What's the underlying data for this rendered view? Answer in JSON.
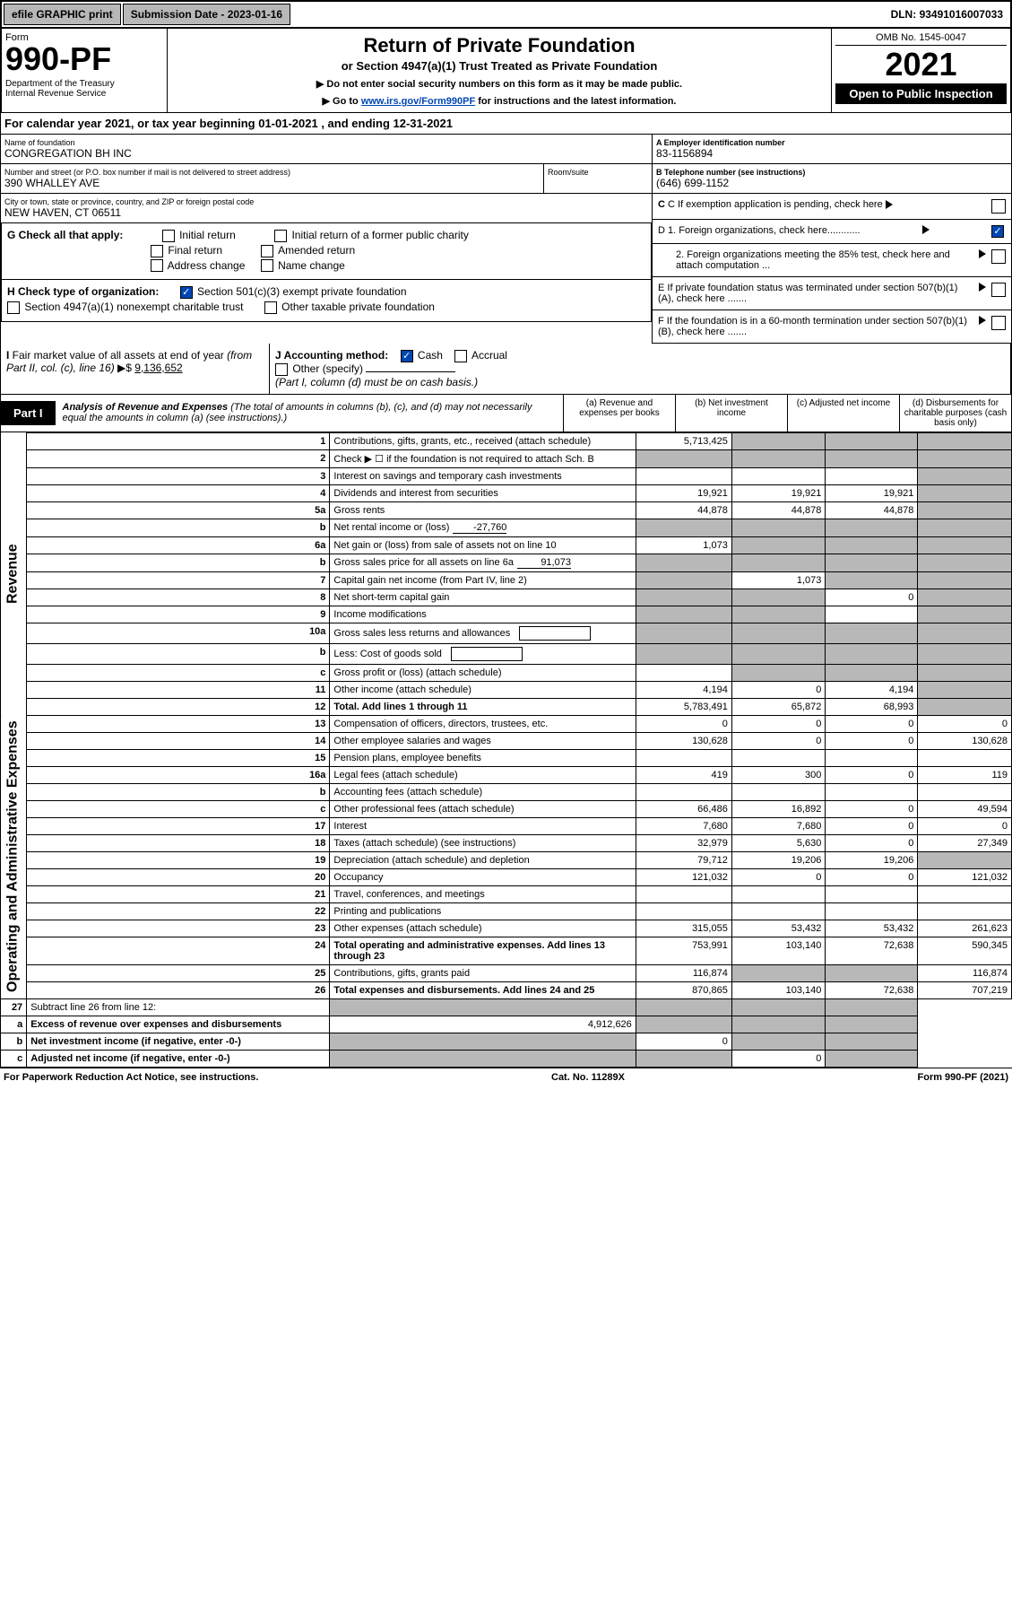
{
  "topbar": {
    "efile": "efile GRAPHIC print",
    "subdate_lbl": "Submission Date - ",
    "subdate": "2023-01-16",
    "dln_lbl": "DLN: ",
    "dln": "93491016007033"
  },
  "header": {
    "form": "Form",
    "num": "990-PF",
    "dept": "Department of the Treasury\nInternal Revenue Service",
    "title": "Return of Private Foundation",
    "sub": "or Section 4947(a)(1) Trust Treated as Private Foundation",
    "note1": "▶ Do not enter social security numbers on this form as it may be made public.",
    "note2": "▶ Go to ",
    "link": "www.irs.gov/Form990PF",
    "note3": " for instructions and the latest information.",
    "omb": "OMB No. 1545-0047",
    "year": "2021",
    "open": "Open to Public Inspection"
  },
  "calyear": "For calendar year 2021, or tax year beginning 01-01-2021            , and ending 12-31-2021",
  "name": {
    "lbl": "Name of foundation",
    "val": "CONGREGATION BH INC"
  },
  "addr": {
    "lbl": "Number and street (or P.O. box number if mail is not delivered to street address)",
    "val": "390 WHALLEY AVE",
    "room": "Room/suite"
  },
  "city": {
    "lbl": "City or town, state or province, country, and ZIP or foreign postal code",
    "val": "NEW HAVEN, CT  06511"
  },
  "ein": {
    "lbl": "A Employer identification number",
    "val": "83-1156894"
  },
  "tel": {
    "lbl": "B Telephone number (see instructions)",
    "val": "(646) 699-1152"
  },
  "c": {
    "txt": "C If exemption application is pending, check here"
  },
  "d": {
    "d1": "D 1. Foreign organizations, check here............",
    "d2": "2. Foreign organizations meeting the 85% test, check here and attach computation ...",
    "d1_checked": true
  },
  "e": {
    "txt": "E  If private foundation status was terminated under section 507(b)(1)(A), check here ......."
  },
  "f": {
    "txt": "F  If the foundation is in a 60-month termination under section 507(b)(1)(B), check here ......."
  },
  "g": {
    "lbl": "G Check all that apply:",
    "opts": [
      "Initial return",
      "Initial return of a former public charity",
      "Final return",
      "Amended return",
      "Address change",
      "Name change"
    ]
  },
  "h": {
    "lbl": "H Check type of organization:",
    "o1": "Section 501(c)(3) exempt private foundation",
    "o2": "Section 4947(a)(1) nonexempt charitable trust",
    "o3": "Other taxable private foundation",
    "o1_checked": true
  },
  "i": {
    "lbl": "I Fair market value of all assets at end of year (from Part II, col. (c), line 16) ▶$",
    "val": "9,136,652"
  },
  "j": {
    "lbl": "J Accounting method:",
    "cash": "Cash",
    "accrual": "Accrual",
    "other": "Other (specify)",
    "note": "(Part I, column (d) must be on cash basis.)",
    "cash_checked": true
  },
  "part1": {
    "tag": "Part I",
    "desc_b": "Analysis of Revenue and Expenses",
    "desc_i": " (The total of amounts in columns (b), (c), and (d) may not necessarily equal the amounts in column (a) (see instructions).)",
    "ca": "(a)  Revenue and expenses per books",
    "cb": "(b)  Net investment income",
    "cc": "(c)  Adjusted net income",
    "cd": "(d)  Disbursements for charitable purposes (cash basis only)"
  },
  "revlabel": "Revenue",
  "oplabel": "Operating and Administrative Expenses",
  "rows": [
    {
      "n": "1",
      "d": "Contributions, gifts, grants, etc., received (attach schedule)",
      "a": "5,713,425",
      "grey_bcd": true
    },
    {
      "n": "2",
      "d": "Check ▶ ☐ if the foundation is not required to attach Sch. B",
      "dots": true,
      "grey_all": true
    },
    {
      "n": "3",
      "d": "Interest on savings and temporary cash investments",
      "a": "",
      "b": "",
      "c": ""
    },
    {
      "n": "4",
      "d": "Dividends and interest from securities",
      "dots": true,
      "a": "19,921",
      "b": "19,921",
      "c": "19,921"
    },
    {
      "n": "5a",
      "d": "Gross rents",
      "dots": true,
      "a": "44,878",
      "b": "44,878",
      "c": "44,878"
    },
    {
      "n": "b",
      "d": "Net rental income or (loss)",
      "fill": "-27,760",
      "grey_all": true
    },
    {
      "n": "6a",
      "d": "Net gain or (loss) from sale of assets not on line 10",
      "a": "1,073",
      "grey_bcd": true
    },
    {
      "n": "b",
      "d": "Gross sales price for all assets on line 6a",
      "fill": "91,073",
      "grey_all": true
    },
    {
      "n": "7",
      "d": "Capital gain net income (from Part IV, line 2)",
      "dots": true,
      "b": "1,073",
      "grey_acd": true,
      "grey_a": true
    },
    {
      "n": "8",
      "d": "Net short-term capital gain",
      "dots": true,
      "c": "0",
      "grey_abd": true
    },
    {
      "n": "9",
      "d": "Income modifications",
      "dots": true,
      "grey_abd": true
    },
    {
      "n": "10a",
      "d": "Gross sales less returns and allowances",
      "box": true,
      "grey_all": true
    },
    {
      "n": "b",
      "d": "Less: Cost of goods sold",
      "dots": true,
      "box": true,
      "grey_all": true
    },
    {
      "n": "c",
      "d": "Gross profit or (loss) (attach schedule)",
      "dots": true,
      "a": "",
      "grey_bcd": true,
      "c": ""
    },
    {
      "n": "11",
      "d": "Other income (attach schedule)",
      "dots": true,
      "a": "4,194",
      "b": "0",
      "c": "4,194"
    },
    {
      "n": "12",
      "d": "Total. Add lines 1 through 11",
      "dots": true,
      "b_bold": true,
      "a": "5,783,491",
      "b": "65,872",
      "c": "68,993",
      "grey_d": true
    }
  ],
  "oprows": [
    {
      "n": "13",
      "d": "Compensation of officers, directors, trustees, etc.",
      "a": "0",
      "b": "0",
      "c": "0",
      "dd": "0"
    },
    {
      "n": "14",
      "d": "Other employee salaries and wages",
      "dots": true,
      "a": "130,628",
      "b": "0",
      "c": "0",
      "dd": "130,628"
    },
    {
      "n": "15",
      "d": "Pension plans, employee benefits",
      "dots": true
    },
    {
      "n": "16a",
      "d": "Legal fees (attach schedule)",
      "dots": true,
      "a": "419",
      "b": "300",
      "c": "0",
      "dd": "119"
    },
    {
      "n": "b",
      "d": "Accounting fees (attach schedule)",
      "dots": true
    },
    {
      "n": "c",
      "d": "Other professional fees (attach schedule)",
      "dots": true,
      "a": "66,486",
      "b": "16,892",
      "c": "0",
      "dd": "49,594"
    },
    {
      "n": "17",
      "d": "Interest",
      "dots": true,
      "a": "7,680",
      "b": "7,680",
      "c": "0",
      "dd": "0"
    },
    {
      "n": "18",
      "d": "Taxes (attach schedule) (see instructions)",
      "dots": true,
      "a": "32,979",
      "b": "5,630",
      "c": "0",
      "dd": "27,349"
    },
    {
      "n": "19",
      "d": "Depreciation (attach schedule) and depletion",
      "dots": true,
      "a": "79,712",
      "b": "19,206",
      "c": "19,206",
      "grey_d": true
    },
    {
      "n": "20",
      "d": "Occupancy",
      "dots": true,
      "a": "121,032",
      "b": "0",
      "c": "0",
      "dd": "121,032"
    },
    {
      "n": "21",
      "d": "Travel, conferences, and meetings",
      "dots": true
    },
    {
      "n": "22",
      "d": "Printing and publications",
      "dots": true
    },
    {
      "n": "23",
      "d": "Other expenses (attach schedule)",
      "dots": true,
      "a": "315,055",
      "b": "53,432",
      "c": "53,432",
      "dd": "261,623"
    },
    {
      "n": "24",
      "d": "Total operating and administrative expenses. Add lines 13 through 23",
      "dots": true,
      "b_bold": true,
      "a": "753,991",
      "b": "103,140",
      "c": "72,638",
      "dd": "590,345"
    },
    {
      "n": "25",
      "d": "Contributions, gifts, grants paid",
      "dots": true,
      "a": "116,874",
      "grey_bc": true,
      "dd": "116,874"
    },
    {
      "n": "26",
      "d": "Total expenses and disbursements. Add lines 24 and 25",
      "b_bold": true,
      "a": "870,865",
      "b": "103,140",
      "c": "72,638",
      "dd": "707,219"
    }
  ],
  "row27": [
    {
      "n": "27",
      "d": "Subtract line 26 from line 12:",
      "grey_all": true
    },
    {
      "n": "a",
      "d": "Excess of revenue over expenses and disbursements",
      "b_bold": true,
      "a": "4,912,626",
      "grey_bcd": true
    },
    {
      "n": "b",
      "d": "Net investment income (if negative, enter -0-)",
      "b_bold": true,
      "b": "0",
      "grey_acd": true
    },
    {
      "n": "c",
      "d": "Adjusted net income (if negative, enter -0-)",
      "dots": true,
      "b_bold": true,
      "c": "0",
      "grey_abd": true
    }
  ],
  "footer": {
    "l": "For Paperwork Reduction Act Notice, see instructions.",
    "m": "Cat. No. 11289X",
    "r": "Form 990-PF (2021)"
  }
}
